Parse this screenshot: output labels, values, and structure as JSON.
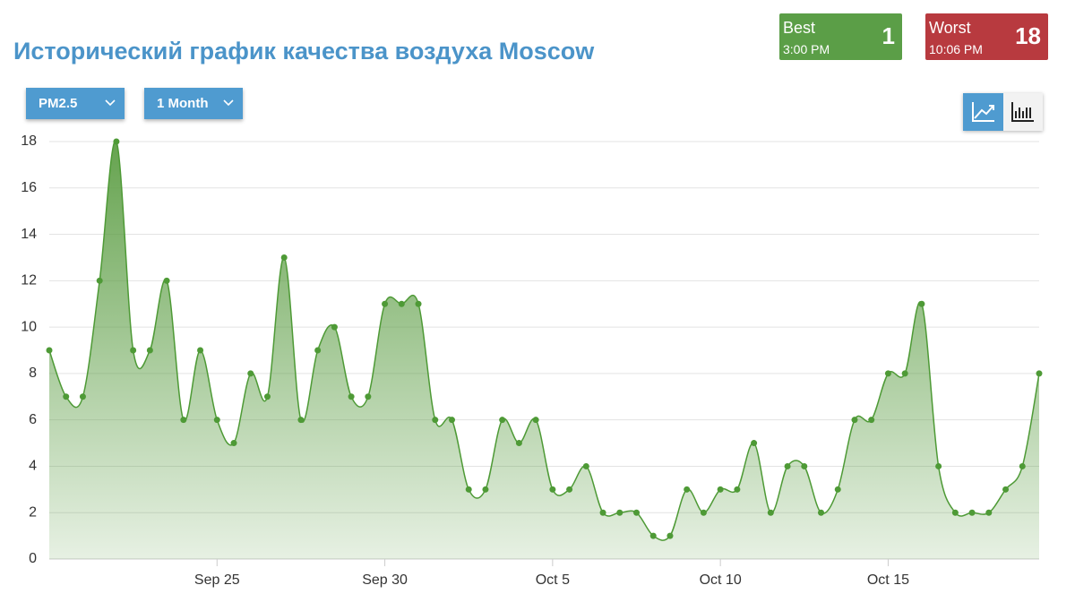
{
  "header": {
    "title": "Исторический график качества воздуха Moscow",
    "best": {
      "label": "Best",
      "time": "3:00 PM",
      "value": "1"
    },
    "worst": {
      "label": "Worst",
      "time": "10:06 PM",
      "value": "18"
    },
    "pollutant": "PM2.5",
    "range": "1 Month"
  },
  "chart_data": {
    "type": "area",
    "categories": [
      null,
      null,
      null,
      null,
      null,
      null,
      null,
      null,
      null,
      null,
      "Sep 25",
      null,
      null,
      null,
      null,
      null,
      null,
      null,
      null,
      null,
      "Sep 30",
      null,
      null,
      null,
      null,
      null,
      null,
      null,
      null,
      null,
      "Oct 5",
      null,
      null,
      null,
      null,
      null,
      null,
      null,
      null,
      null,
      "Oct 10",
      null,
      null,
      null,
      null,
      null,
      null,
      null,
      null,
      null,
      "Oct 15",
      null,
      null,
      null,
      null,
      null,
      null,
      null,
      null,
      null
    ],
    "values": [
      9,
      7,
      7,
      12,
      18,
      9,
      9,
      12,
      6,
      9,
      6,
      5,
      8,
      7,
      13,
      6,
      9,
      10,
      7,
      7,
      11,
      11,
      11,
      6,
      6,
      3,
      3,
      6,
      5,
      6,
      3,
      3,
      4,
      2,
      2,
      2,
      1,
      1,
      3,
      2,
      3,
      3,
      5,
      2,
      4,
      4,
      2,
      3,
      6,
      6,
      8,
      8,
      11,
      4,
      2,
      2,
      2,
      3,
      4,
      8
    ],
    "color": "#4e9a36",
    "ylim": [
      0,
      18
    ],
    "yticks": [
      0,
      2,
      4,
      6,
      8,
      10,
      12,
      14,
      16,
      18
    ],
    "grid": true
  }
}
